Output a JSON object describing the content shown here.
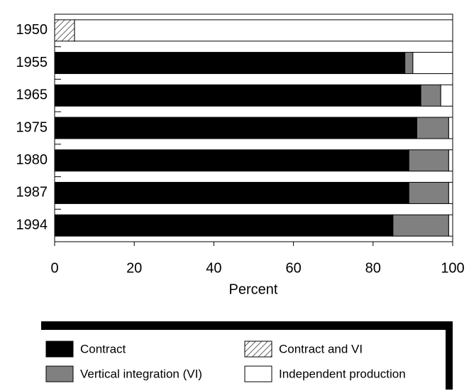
{
  "chart_data": {
    "type": "stacked-barh",
    "categories": [
      "1950",
      "1955",
      "1965",
      "1975",
      "1980",
      "1987",
      "1994"
    ],
    "series": [
      {
        "name": "Contract",
        "color": "#000000",
        "values": [
          0,
          88,
          92,
          91,
          89,
          89,
          85
        ]
      },
      {
        "name": "Contract and VI",
        "color": "#ffffff",
        "hatch": true,
        "values": [
          5,
          0,
          0,
          0,
          0,
          0,
          0
        ]
      },
      {
        "name": "Vertical integration (VI)",
        "color": "#808080",
        "values": [
          0,
          2,
          5,
          8,
          10,
          10,
          14
        ]
      },
      {
        "name": "Independent production",
        "color": "#ffffff",
        "values": [
          95,
          10,
          3,
          1,
          1,
          1,
          1
        ]
      }
    ],
    "xlabel": "Percent",
    "xlim": [
      0,
      100
    ],
    "xticks": [
      0,
      20,
      40,
      60,
      80,
      100
    ],
    "legend": "bottom"
  }
}
